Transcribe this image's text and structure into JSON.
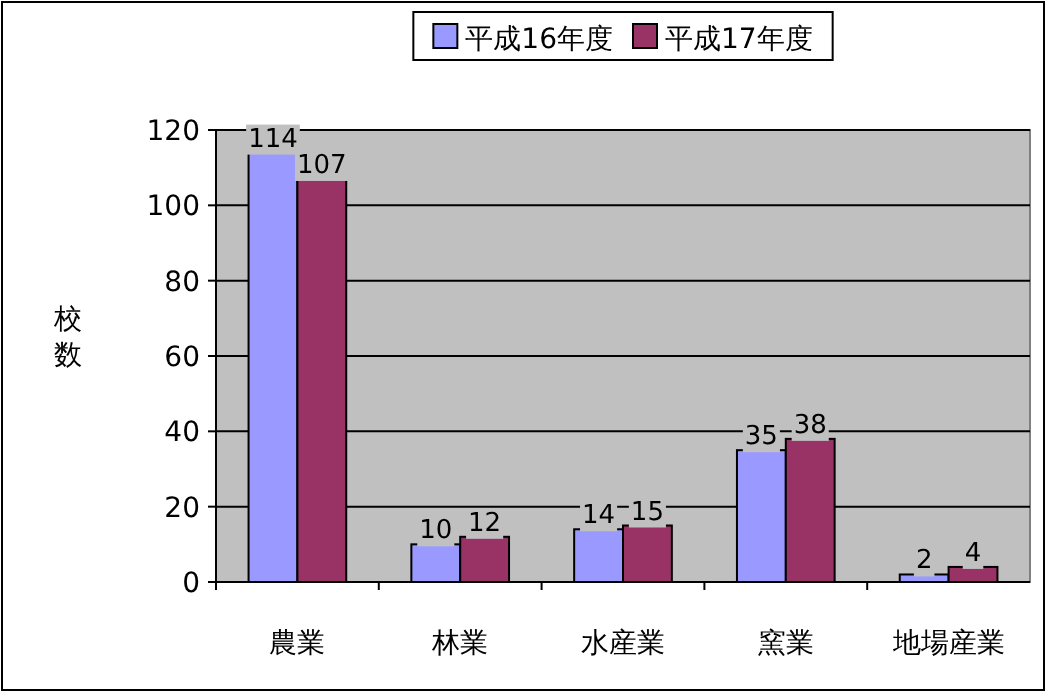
{
  "chart_data": {
    "type": "bar",
    "ylabel": "校数",
    "categories": [
      "農業",
      "林業",
      "水産業",
      "窯業",
      "地場産業"
    ],
    "series": [
      {
        "name": "平成16年度",
        "color": "#9999ff",
        "values": [
          114,
          10,
          14,
          35,
          2
        ]
      },
      {
        "name": "平成17年度",
        "color": "#993366",
        "values": [
          107,
          12,
          15,
          38,
          4
        ]
      }
    ],
    "ylim": [
      0,
      120
    ],
    "yticks": [
      0,
      20,
      40,
      60,
      80,
      100,
      120
    ],
    "grid": "y",
    "legend": "top",
    "data_labels": true
  }
}
